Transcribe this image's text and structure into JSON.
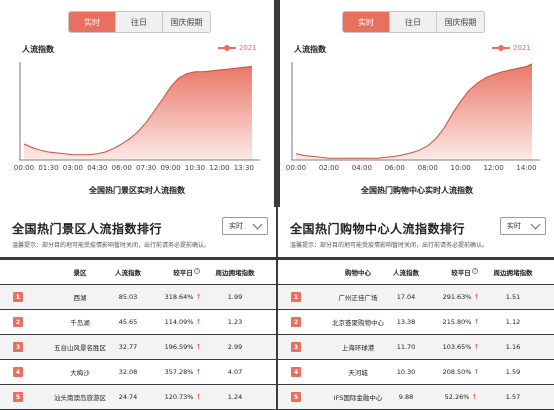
{
  "left_chart": {
    "tabs": [
      "实时",
      "往日",
      "国庆假期"
    ],
    "active_tab": 0,
    "title": "人流指数",
    "legend": "2021",
    "caption": "全国热门景区实时人流指数"
  },
  "right_chart": {
    "tabs": [
      "实时",
      "往日",
      "国庆假期"
    ],
    "active_tab": 0,
    "title": "人流指数",
    "legend": "2021",
    "caption": "全国热门购物中心实时人流指数"
  },
  "chart_data": [
    {
      "type": "area",
      "title": "",
      "xlabel": "",
      "ylabel": "人流指数",
      "legend": [
        "2021"
      ],
      "color": "#e9705f",
      "x_ticks": [
        "00:00",
        "01:30",
        "03:00",
        "04:30",
        "06:00",
        "07:30",
        "09:00",
        "10:30",
        "12:00",
        "13:30"
      ],
      "series": [
        {
          "name": "2021",
          "x": [
            "00:00",
            "00:30",
            "01:00",
            "01:30",
            "02:00",
            "02:30",
            "03:00",
            "03:30",
            "04:00",
            "04:30",
            "05:00",
            "05:30",
            "06:00",
            "06:30",
            "07:00",
            "07:30",
            "08:00",
            "08:30",
            "09:00",
            "09:30",
            "10:00",
            "10:30",
            "11:00",
            "11:30",
            "12:00",
            "12:30",
            "13:00",
            "13:30",
            "14:00"
          ],
          "values": [
            18,
            14,
            11,
            9,
            8,
            7,
            6,
            6,
            6,
            7,
            9,
            13,
            18,
            24,
            32,
            42,
            55,
            68,
            82,
            92,
            97,
            99,
            99,
            100,
            101,
            102,
            103,
            104,
            105
          ]
        }
      ],
      "ylim": [
        0,
        110
      ],
      "grid": false
    },
    {
      "type": "area",
      "title": "",
      "xlabel": "",
      "ylabel": "人流指数",
      "legend": [
        "2021"
      ],
      "color": "#e9705f",
      "x_ticks": [
        "00:00",
        "02:00",
        "04:00",
        "06:00",
        "08:00",
        "10:00",
        "12:00",
        "14:00"
      ],
      "series": [
        {
          "name": "2021",
          "x": [
            "00:00",
            "00:30",
            "01:00",
            "01:30",
            "02:00",
            "02:30",
            "03:00",
            "03:30",
            "04:00",
            "04:30",
            "05:00",
            "05:30",
            "06:00",
            "06:30",
            "07:00",
            "07:30",
            "08:00",
            "08:30",
            "09:00",
            "09:30",
            "10:00",
            "10:30",
            "11:00",
            "11:30",
            "12:00",
            "12:30",
            "13:00",
            "13:30",
            "14:00",
            "14:20"
          ],
          "values": [
            7,
            5,
            4,
            3,
            2,
            2,
            2,
            2,
            2,
            2,
            2,
            3,
            4,
            6,
            8,
            11,
            16,
            24,
            36,
            52,
            66,
            78,
            86,
            92,
            96,
            99,
            101,
            103,
            105,
            108
          ]
        }
      ],
      "ylim": [
        0,
        110
      ],
      "grid": false
    }
  ],
  "left_rank": {
    "title": "全国热门景区人流指数排行",
    "notice": "温馨提示：部分目的地可能受疫情影响暂时关闭，出行前请务必提前确认。",
    "select_value": "实时",
    "headers": [
      "景区",
      "人流指数",
      "较平日",
      "周边拥堵指数"
    ],
    "rows": [
      {
        "rank": "1",
        "name": "西湖",
        "index": "85.03",
        "change": "318.64%",
        "congestion": "1.99"
      },
      {
        "rank": "2",
        "name": "千岛湖",
        "index": "45.65",
        "change": "114.09%",
        "congestion": "1.23"
      },
      {
        "rank": "3",
        "name": "五台山风景名胜区",
        "index": "32.77",
        "change": "196.59%",
        "congestion": "2.99"
      },
      {
        "rank": "4",
        "name": "大梅沙",
        "index": "32.08",
        "change": "357.28%",
        "congestion": "4.07"
      },
      {
        "rank": "5",
        "name": "汕头南澳岛旅游区",
        "index": "24.74",
        "change": "120.73%",
        "congestion": "1.24"
      }
    ]
  },
  "right_rank": {
    "title": "全国热门购物中心人流指数排行",
    "notice": "温馨提示：部分目的地可能受疫情影响暂时关闭，出行前请务必提前确认。",
    "select_value": "实时",
    "headers": [
      "购物中心",
      "人流指数",
      "较平日",
      "周边拥堵指数"
    ],
    "rows": [
      {
        "rank": "1",
        "name": "广州正佳广场",
        "index": "17.04",
        "change": "291.63%",
        "congestion": "1.51"
      },
      {
        "rank": "2",
        "name": "北京荟聚购物中心",
        "index": "13.38",
        "change": "215.80%",
        "congestion": "1.12"
      },
      {
        "rank": "3",
        "name": "上海环球港",
        "index": "11.70",
        "change": "103.65%",
        "congestion": "1.16"
      },
      {
        "rank": "4",
        "name": "天河城",
        "index": "10.30",
        "change": "208.50%",
        "congestion": "1.59"
      },
      {
        "rank": "5",
        "name": "IFS国际金融中心",
        "index": "9.88",
        "change": "52.26%",
        "congestion": "1.57"
      }
    ]
  },
  "icons": {
    "trend": "arrow-up-icon",
    "info": "info-icon",
    "select": "chevron-down-icon"
  }
}
